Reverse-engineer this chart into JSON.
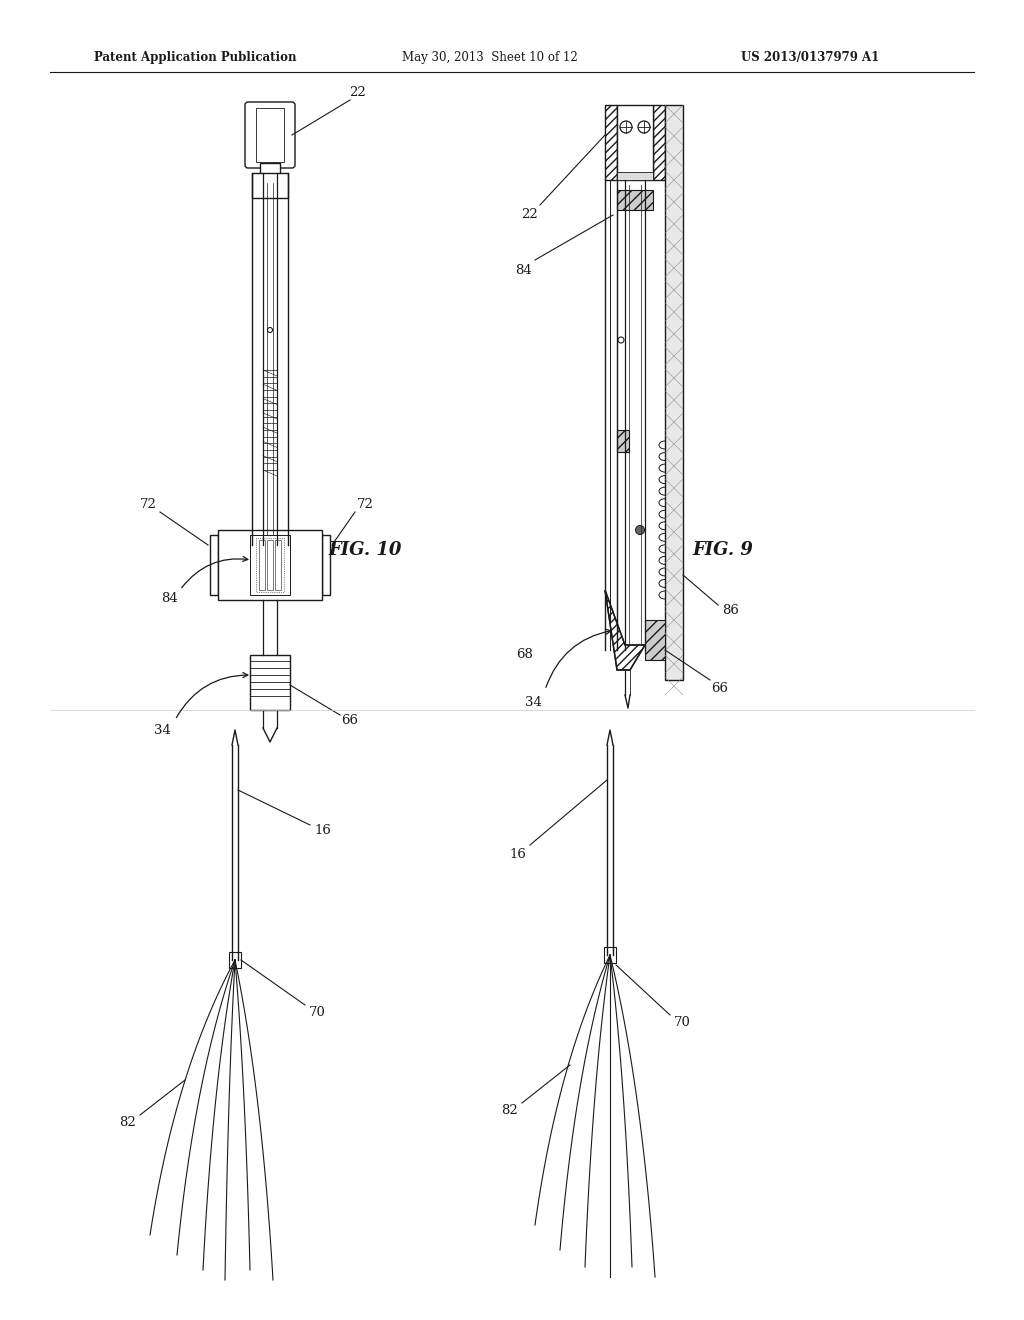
{
  "header_left": "Patent Application Publication",
  "header_mid": "May 30, 2013  Sheet 10 of 12",
  "header_right": "US 2013/0137979 A1",
  "fig9_label": "FIG. 9",
  "fig10_label": "FIG. 10",
  "bg_color": "#ffffff",
  "line_color": "#1a1a1a",
  "labels": {
    "22L": "22",
    "22R": "22",
    "72a": "72",
    "72b": "72",
    "84L": "84",
    "84R": "84",
    "34L": "34",
    "34R": "34",
    "66L": "66",
    "66R": "66",
    "68": "68",
    "86": "86",
    "16L": "16",
    "16R": "16",
    "70L": "70",
    "70R": "70",
    "82L": "82",
    "82R": "82"
  }
}
